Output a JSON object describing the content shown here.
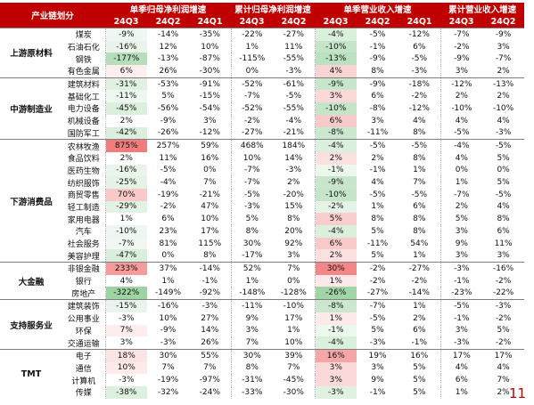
{
  "header": {
    "corner": "产业链划分",
    "groups": [
      "单季归母净利润增速",
      "累计归母净利润增速",
      "单季营业收入增速",
      "累计营业收入增速"
    ],
    "periods": [
      "24Q3",
      "24Q2",
      "24Q1",
      "24Q3",
      "24Q2",
      "24Q3",
      "24Q2",
      "24Q1",
      "24Q3",
      "24Q2"
    ]
  },
  "sections": [
    {
      "name": "上游原材料",
      "rows": [
        {
          "industry": "煤炭",
          "values": [
            "-9%",
            "-14%",
            "-35%",
            "-22%",
            "-27%",
            "-4%",
            "-5%",
            "-12%",
            "-7%",
            "-9%"
          ]
        },
        {
          "industry": "石油石化",
          "values": [
            "-16%",
            "12%",
            "10%",
            "1%",
            "11%",
            "-10%",
            "-1%",
            "6%",
            "-2%",
            "3%"
          ]
        },
        {
          "industry": "钢铁",
          "values": [
            "-177%",
            "-13%",
            "-87%",
            "-115%",
            "-55%",
            "-13%",
            "-9%",
            "-5%",
            "-9%",
            "-7%"
          ]
        },
        {
          "industry": "有色金属",
          "values": [
            "6%",
            "26%",
            "-30%",
            "0%",
            "-3%",
            "4%",
            "8%",
            "-3%",
            "3%",
            "2%"
          ]
        }
      ]
    },
    {
      "name": "中游制造业",
      "rows": [
        {
          "industry": "建筑材料",
          "values": [
            "-31%",
            "-53%",
            "-91%",
            "-52%",
            "-61%",
            "-9%",
            "-9%",
            "-18%",
            "-12%",
            "-13%"
          ]
        },
        {
          "industry": "基础化工",
          "values": [
            "-11%",
            "5%",
            "-15%",
            "-7%",
            "-5%",
            "3%",
            "6%",
            "-2%",
            "2%",
            "2%"
          ]
        },
        {
          "industry": "电力设备",
          "values": [
            "-45%",
            "-56%",
            "-54%",
            "-52%",
            "-55%",
            "-10%",
            "-8%",
            "-12%",
            "-10%",
            "-10%"
          ]
        },
        {
          "industry": "机械设备",
          "values": [
            "2%",
            "-9%",
            "3%",
            "-2%",
            "-4%",
            "6%",
            "3%",
            "4%",
            "4%",
            "4%"
          ]
        },
        {
          "industry": "国防军工",
          "values": [
            "-42%",
            "-26%",
            "-12%",
            "-27%",
            "-21%",
            "-8%",
            "-11%",
            "8%",
            "-5%",
            "-3%"
          ]
        }
      ]
    },
    {
      "name": "下游消费品",
      "rows": [
        {
          "industry": "农林牧渔",
          "values": [
            "875%",
            "257%",
            "59%",
            "468%",
            "184%",
            "-4%",
            "-5%",
            "-5%",
            "-4%",
            "-5%"
          ]
        },
        {
          "industry": "食品饮料",
          "values": [
            "2%",
            "11%",
            "16%",
            "10%",
            "14%",
            "2%",
            "2%",
            "8%",
            "4%",
            "5%"
          ]
        },
        {
          "industry": "医药生物",
          "values": [
            "-16%",
            "-5%",
            "0%",
            "-7%",
            "-3%",
            "-1%",
            "-1%",
            "1%",
            "0%",
            "0%"
          ]
        },
        {
          "industry": "纺织服饰",
          "values": [
            "-25%",
            "-4%",
            "7%",
            "-7%",
            "2%",
            "-9%",
            "4%",
            "7%",
            "1%",
            "5%"
          ]
        },
        {
          "industry": "商贸零售",
          "values": [
            "70%",
            "-19%",
            "-21%",
            "-5%",
            "-20%",
            "-10%",
            "-5%",
            "-5%",
            "-7%",
            "-5%"
          ]
        },
        {
          "industry": "轻工制造",
          "values": [
            "-29%",
            "-2%",
            "47%",
            "-3%",
            "15%",
            "-2%",
            "1%",
            "6%",
            "2%",
            "4%"
          ]
        },
        {
          "industry": "家用电器",
          "values": [
            "1%",
            "6%",
            "10%",
            "5%",
            "8%",
            "5%",
            "8%",
            "8%",
            "5%",
            "8%"
          ]
        },
        {
          "industry": "汽车",
          "values": [
            "-10%",
            "23%",
            "17%",
            "8%",
            "20%",
            "-4%",
            "5%",
            "8%",
            "3%",
            "6%"
          ]
        },
        {
          "industry": "社会服务",
          "values": [
            "-7%",
            "81%",
            "115%",
            "30%",
            "92%",
            "6%",
            "-11%",
            "54%",
            "9%",
            "11%"
          ]
        },
        {
          "industry": "美容护理",
          "values": [
            "-47%",
            "0%",
            "8%",
            "-17%",
            "3%",
            "2%",
            "5%",
            "1%",
            "3%",
            "3%"
          ]
        }
      ]
    },
    {
      "name": "大金融",
      "rows": [
        {
          "industry": "非银金融",
          "values": [
            "233%",
            "37%",
            "-14%",
            "52%",
            "7%",
            "30%",
            "-2%",
            "-27%",
            "-3%",
            "-16%"
          ]
        },
        {
          "industry": "银行",
          "values": [
            "4%",
            "1%",
            "-1%",
            "1%",
            "0%",
            "1%",
            "-2%",
            "-2%",
            "-1%",
            "-2%"
          ]
        },
        {
          "industry": "房地产",
          "values": [
            "-322%",
            "-149%",
            "-92%",
            "-148%",
            "-128%",
            "-26%",
            "-27%",
            "-14%",
            "-23%",
            "-22%"
          ]
        }
      ]
    },
    {
      "name": "支持服务业",
      "rows": [
        {
          "industry": "建筑装饰",
          "values": [
            "-15%",
            "-16%",
            "-3%",
            "-11%",
            "-10%",
            "-8%",
            "-7%",
            "1%",
            "-5%",
            "-3%"
          ]
        },
        {
          "industry": "公用事业",
          "values": [
            "-3%",
            "10%",
            "27%",
            "9%",
            "17%",
            "1%",
            "-5%",
            "2%",
            "-1%",
            "-2%"
          ]
        },
        {
          "industry": "环保",
          "values": [
            "7%",
            "-9%",
            "14%",
            "3%",
            "1%",
            "-1%",
            "5%",
            "6%",
            "3%",
            "5%"
          ]
        },
        {
          "industry": "交通运输",
          "values": [
            "3%",
            "-3%",
            "26%",
            "7%",
            "10%",
            "-4%",
            "-3%",
            "-1%",
            "-3%",
            "-2%"
          ]
        }
      ]
    },
    {
      "name": "TMT",
      "rows": [
        {
          "industry": "电子",
          "values": [
            "18%",
            "30%",
            "55%",
            "30%",
            "39%",
            "16%",
            "19%",
            "16%",
            "17%",
            "17%"
          ]
        },
        {
          "industry": "通信",
          "values": [
            "10%",
            "7%",
            "7%",
            "8%",
            "7%",
            "3%",
            "3%",
            "5%",
            "4%",
            "4%"
          ]
        },
        {
          "industry": "计算机",
          "values": [
            "-3%",
            "-19%",
            "-97%",
            "-31%",
            "-45%",
            "3%",
            "9%",
            "5%",
            "6%",
            "7%"
          ]
        },
        {
          "industry": "传媒",
          "values": [
            "-38%",
            "-32%",
            "-24%",
            "-33%",
            "-30%",
            "-3%",
            "-1%",
            "5%",
            "1%",
            "2%"
          ]
        }
      ]
    }
  ],
  "page_number": "11"
}
